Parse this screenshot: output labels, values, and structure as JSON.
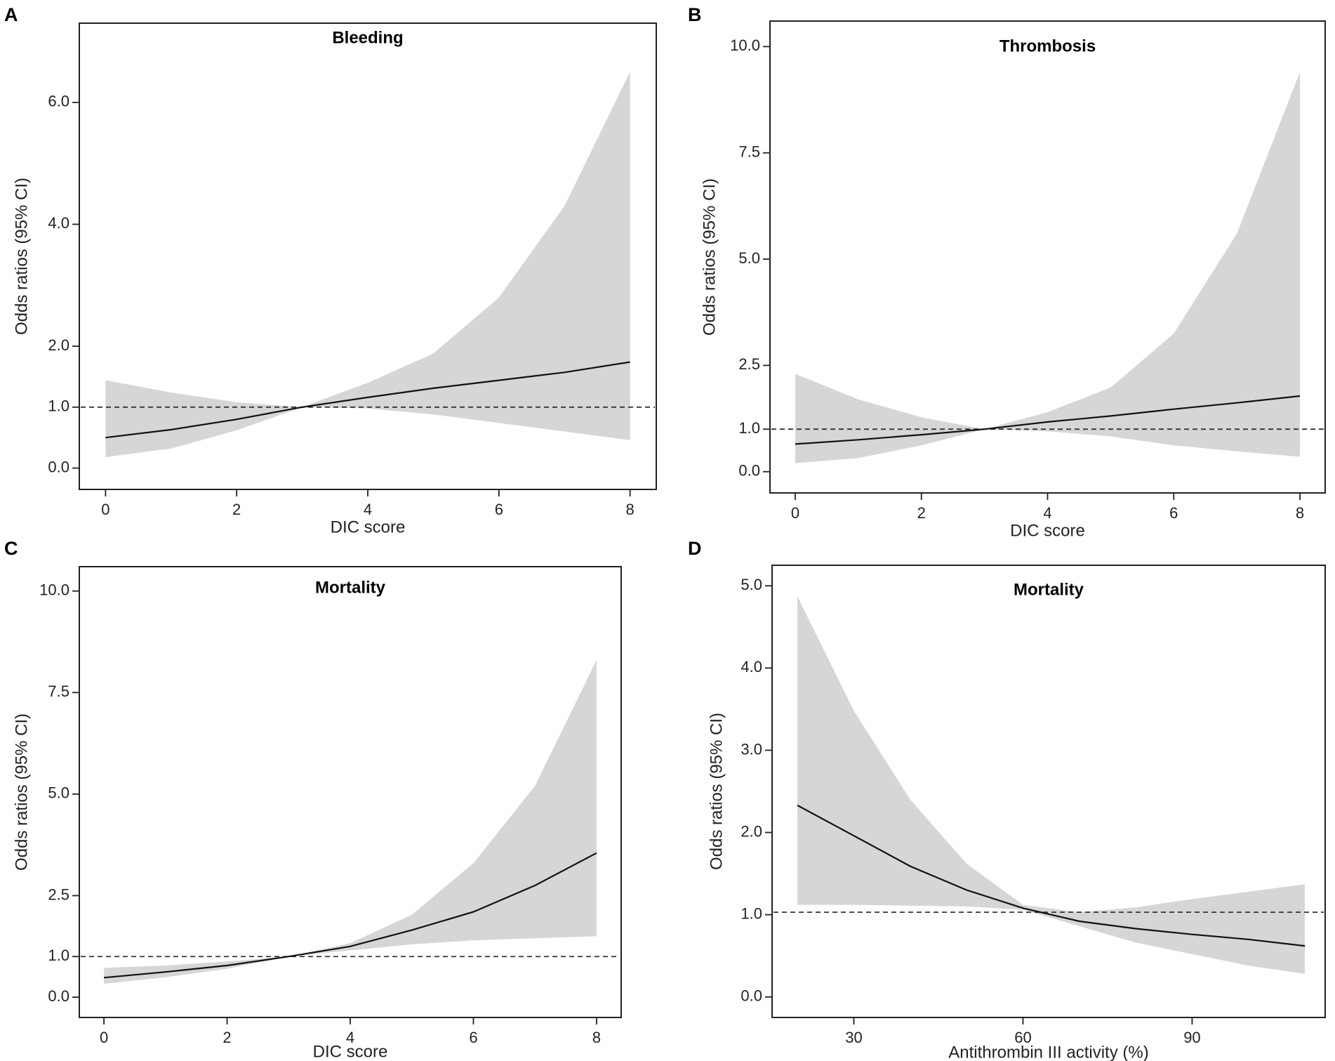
{
  "figure": {
    "panels": [
      "A",
      "B",
      "C",
      "D"
    ]
  },
  "chart_data": [
    {
      "panel": "A",
      "type": "line",
      "title": "Bleeding",
      "xlabel": "DIC score",
      "ylabel": "Odds ratios (95% CI)",
      "xlim": [
        -0.4,
        8.4
      ],
      "ylim": [
        -0.35,
        7.3
      ],
      "xticks": [
        0,
        2,
        4,
        6,
        8
      ],
      "xtick_labels": [
        "0",
        "2",
        "4",
        "6",
        "8"
      ],
      "yticks": [
        0.0,
        1.0,
        2.0,
        4.0,
        6.0
      ],
      "ytick_labels": [
        "0.0",
        "1.0",
        "2.0",
        "4.0",
        "6.0"
      ],
      "reference_line": 1.0,
      "series": [
        {
          "name": "Odds ratio",
          "x": [
            0,
            1,
            2,
            3,
            4,
            5,
            6,
            7,
            8
          ],
          "y": [
            0.5,
            0.63,
            0.8,
            1.0,
            1.16,
            1.31,
            1.44,
            1.57,
            1.74
          ],
          "lower": [
            0.18,
            0.32,
            0.62,
            1.0,
            0.98,
            0.88,
            0.74,
            0.6,
            0.46
          ],
          "upper": [
            1.44,
            1.24,
            1.08,
            1.0,
            1.4,
            1.88,
            2.8,
            4.3,
            6.5
          ]
        }
      ]
    },
    {
      "panel": "B",
      "type": "line",
      "title": "Thrombosis",
      "xlabel": "DIC score",
      "ylabel": "Odds ratios (95% CI)",
      "xlim": [
        -0.4,
        8.4
      ],
      "ylim": [
        -0.5,
        10.6
      ],
      "xticks": [
        0,
        2,
        4,
        6,
        8
      ],
      "xtick_labels": [
        "0",
        "2",
        "4",
        "6",
        "8"
      ],
      "yticks": [
        0.0,
        1.0,
        2.5,
        5.0,
        7.5,
        10.0
      ],
      "ytick_labels": [
        "0.0",
        "1.0",
        "2.5",
        "5.0",
        "7.5",
        "10.0"
      ],
      "reference_line": 1.0,
      "series": [
        {
          "name": "Odds ratio",
          "x": [
            0,
            1,
            2,
            3,
            4,
            5,
            6,
            7,
            8
          ],
          "y": [
            0.65,
            0.75,
            0.87,
            1.0,
            1.17,
            1.31,
            1.47,
            1.62,
            1.78
          ],
          "lower": [
            0.2,
            0.32,
            0.62,
            1.0,
            0.95,
            0.83,
            0.62,
            0.48,
            0.35
          ],
          "upper": [
            2.3,
            1.7,
            1.28,
            1.0,
            1.4,
            1.98,
            3.25,
            5.6,
            9.4
          ]
        }
      ]
    },
    {
      "panel": "C",
      "type": "line",
      "title": "Mortality",
      "xlabel": "DIC score",
      "ylabel": "Odds ratios (95% CI)",
      "xlim": [
        -0.4,
        8.4
      ],
      "ylim": [
        -0.5,
        10.6
      ],
      "xticks": [
        0,
        2,
        4,
        6,
        8
      ],
      "xtick_labels": [
        "0",
        "2",
        "4",
        "6",
        "8"
      ],
      "yticks": [
        0.0,
        1.0,
        2.5,
        5.0,
        7.5,
        10.0
      ],
      "ytick_labels": [
        "0.0",
        "1.0",
        "2.5",
        "5.0",
        "7.5",
        "10.0"
      ],
      "reference_line": 1.0,
      "series": [
        {
          "name": "Odds ratio",
          "x": [
            0,
            1,
            2,
            3,
            4,
            5,
            6,
            7,
            8
          ],
          "y": [
            0.48,
            0.62,
            0.78,
            1.0,
            1.25,
            1.65,
            2.1,
            2.75,
            3.55
          ],
          "lower": [
            0.33,
            0.49,
            0.7,
            1.0,
            1.15,
            1.3,
            1.4,
            1.45,
            1.5
          ],
          "upper": [
            0.72,
            0.78,
            0.88,
            1.0,
            1.33,
            2.03,
            3.3,
            5.2,
            8.3
          ]
        }
      ]
    },
    {
      "panel": "D",
      "type": "line",
      "title": "Mortality",
      "xlabel": "Antithrombin III activity (%)",
      "ylabel": "Odds ratios (95% CI)",
      "xlim": [
        15.5,
        113.6
      ],
      "ylim": [
        -0.25,
        5.25
      ],
      "xticks": [
        30,
        60,
        90
      ],
      "xtick_labels": [
        "30",
        "60",
        "90"
      ],
      "yticks": [
        0.0,
        1.0,
        2.0,
        3.0,
        4.0,
        5.0
      ],
      "ytick_labels": [
        "0.0",
        "1.0",
        "2.0",
        "3.0",
        "4.0",
        "5.0"
      ],
      "reference_line": 1.03,
      "series": [
        {
          "name": "Odds ratio",
          "x": [
            20,
            30,
            40,
            50,
            60,
            70,
            80,
            90,
            100,
            110
          ],
          "y": [
            2.33,
            1.96,
            1.59,
            1.3,
            1.08,
            0.92,
            0.83,
            0.76,
            0.7,
            0.62
          ],
          "lower": [
            1.12,
            1.12,
            1.11,
            1.1,
            1.06,
            0.86,
            0.66,
            0.52,
            0.38,
            0.28
          ],
          "upper": [
            4.87,
            3.48,
            2.4,
            1.62,
            1.12,
            1.03,
            1.09,
            1.19,
            1.28,
            1.37
          ]
        }
      ]
    }
  ]
}
